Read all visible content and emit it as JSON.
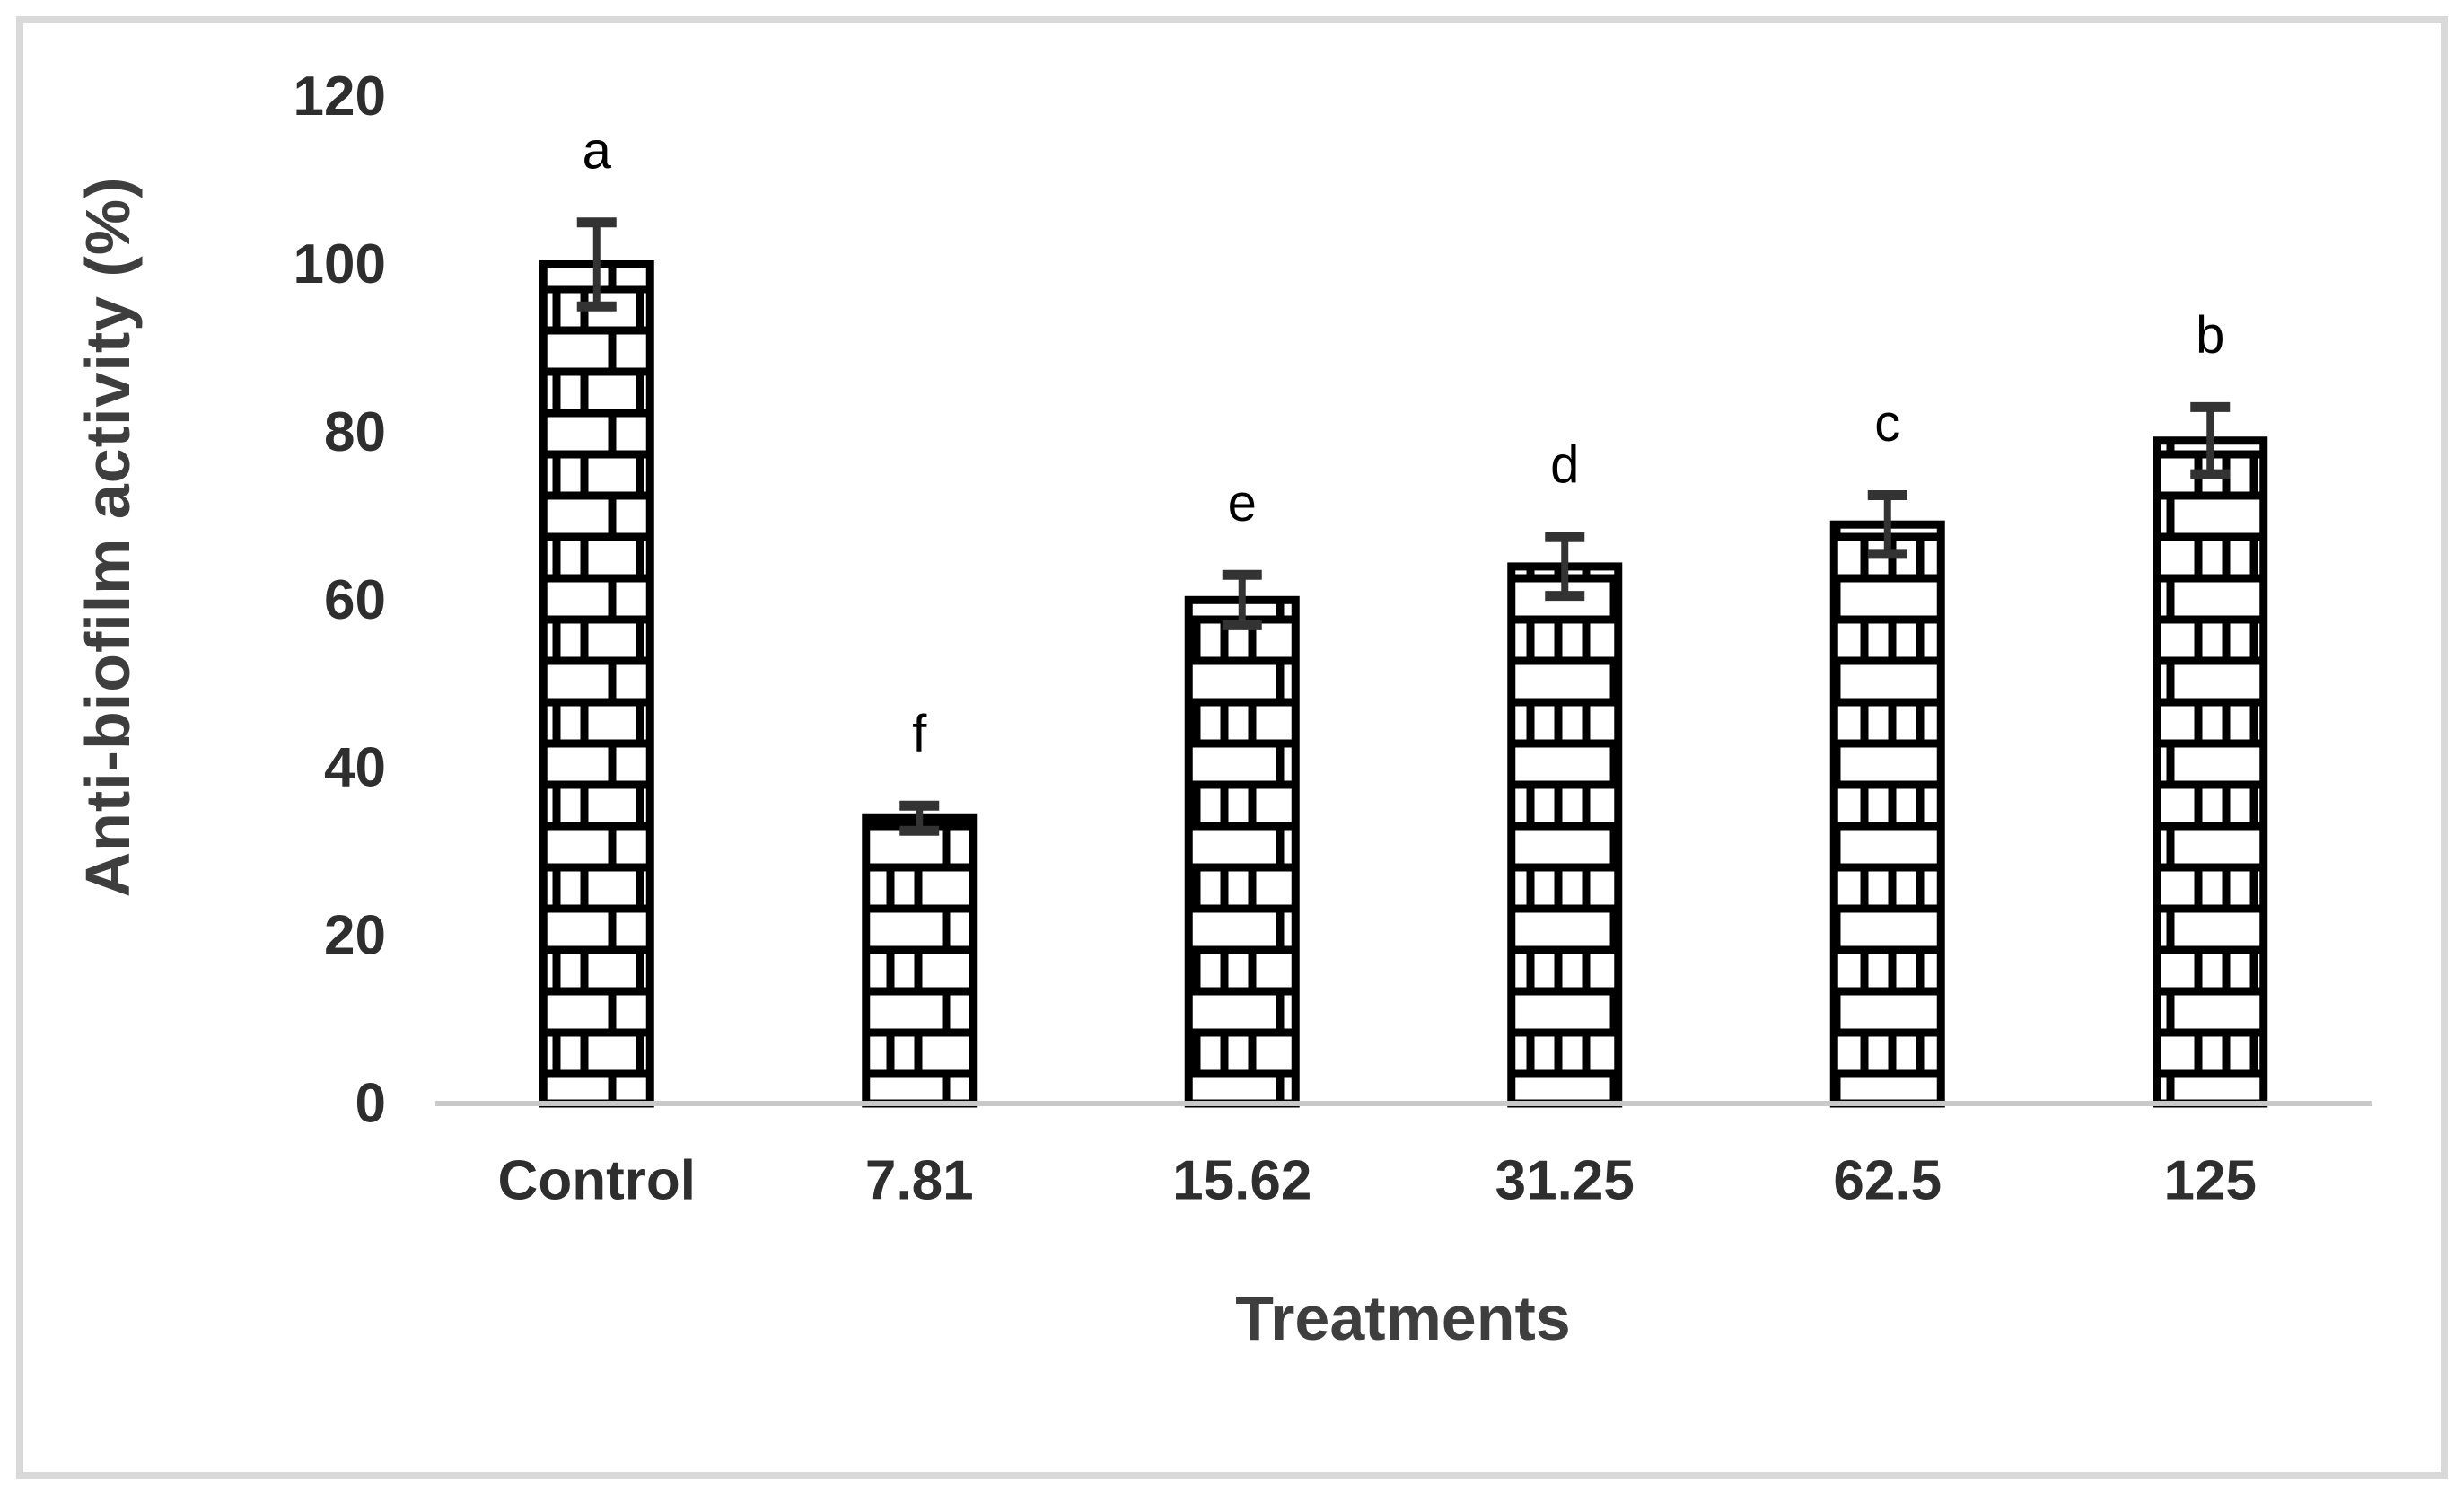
{
  "figure": {
    "border_color": "#d9d9d9",
    "background_color": "#ffffff"
  },
  "chart_data": {
    "type": "bar",
    "title": "",
    "xlabel": "Treatments",
    "ylabel": "Anti-biofilm activity (%)",
    "categories": [
      "Control",
      "7.81",
      "15.62",
      "31.25",
      "62.5",
      "125"
    ],
    "values": [
      100,
      34,
      60,
      64,
      69,
      79
    ],
    "error_bars": [
      5,
      1.5,
      3,
      3.5,
      3.5,
      4
    ],
    "significance_letters": [
      "a",
      "f",
      "e",
      "d",
      "c",
      "b"
    ],
    "ylim": [
      0,
      120
    ],
    "yticks": [
      0,
      20,
      40,
      60,
      80,
      100,
      120
    ],
    "grid": "off",
    "legend": "none",
    "bar_fill_style": "white-brick-pattern",
    "bar_outline_color": "#000000",
    "error_bar_color": "#333333",
    "axis_line_color": "#c9c9c9",
    "tick_label_color": "#2e2e2e",
    "axis_title_color": "#3e3e3e"
  }
}
